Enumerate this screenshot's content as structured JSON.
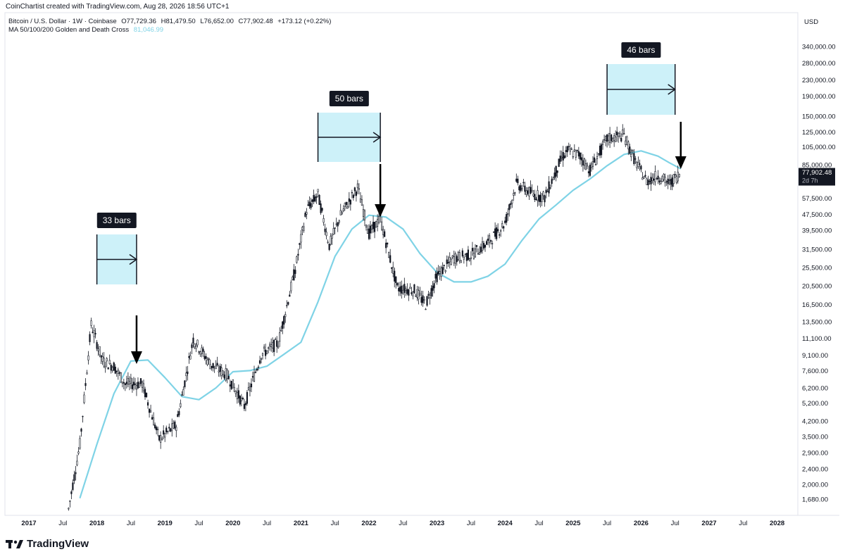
{
  "header": {
    "credit": "CoinChartist created with TradingView.com, Aug 28, 2026 18:56 UTC+1",
    "symbol": "Bitcoin / U.S. Dollar · 1W · Coinbase",
    "open": "O77,729.36",
    "high": "H81,479.50",
    "low": "L76,652.00",
    "close": "C77,902.48",
    "change": "+173.12 (+0.22%)",
    "indicator_name": "MA 50/100/200 Golden and Death Cross",
    "indicator_value": "81,046.99"
  },
  "footer": {
    "brand": "TradingView"
  },
  "colors": {
    "ma_line": "#7fd3e6",
    "box_fill": "#cdf1f9",
    "candles": "#131722",
    "label_bg": "#131722"
  },
  "chart_data": {
    "type": "line",
    "scale": "log",
    "currency": "USD",
    "price_scale_ticks": [
      "340,000.00",
      "280,000.00",
      "230,000.00",
      "190,000.00",
      "150,000.00",
      "125,000.00",
      "105,000.00",
      "85,000.00",
      "57,500.00",
      "47,500.00",
      "39,500.00",
      "31,500.00",
      "25,500.00",
      "20,500.00",
      "16,500.00",
      "13,500.00",
      "11,100.00",
      "9,100.00",
      "7,600.00",
      "6,200.00",
      "5,200.00",
      "4,200.00",
      "3,500.00",
      "2,900.00",
      "2,400.00",
      "2,000.00",
      "1,680.00"
    ],
    "time_axis_labels": [
      "2017",
      "Jul",
      "2018",
      "Jul",
      "2019",
      "Jul",
      "2020",
      "Jul",
      "2021",
      "Jul",
      "2022",
      "Jul",
      "2023",
      "Jul",
      "2024",
      "Jul",
      "2025",
      "Jul",
      "2026",
      "Jul",
      "2027",
      "Jul",
      "2028"
    ],
    "last_price_label": "77,902.48",
    "last_price_countdown": "2d 7h",
    "series": [
      {
        "name": "BTC/USD",
        "style": "candles",
        "x": [
          "2017-08",
          "2017-10",
          "2017-12",
          "2018-02",
          "2018-04",
          "2018-06",
          "2018-09",
          "2018-12",
          "2019-03",
          "2019-06",
          "2019-09",
          "2019-12",
          "2020-03",
          "2020-06",
          "2020-09",
          "2020-12",
          "2021-02",
          "2021-04",
          "2021-06",
          "2021-08",
          "2021-11",
          "2022-01",
          "2022-03",
          "2022-06",
          "2022-09",
          "2022-11",
          "2023-01",
          "2023-04",
          "2023-07",
          "2023-10",
          "2024-01",
          "2024-03",
          "2024-06",
          "2024-08",
          "2024-11",
          "2024-12",
          "2025-02",
          "2025-04",
          "2025-07",
          "2025-10",
          "2025-12",
          "2026-02",
          "2026-04",
          "2026-06",
          "2026-08"
        ],
        "y": [
          1500,
          3200,
          13000,
          8500,
          8000,
          6500,
          6500,
          3400,
          4000,
          11000,
          8200,
          7200,
          5000,
          9200,
          10500,
          25000,
          50000,
          60000,
          33000,
          47000,
          65000,
          38000,
          45000,
          20000,
          19500,
          16500,
          23000,
          28500,
          29500,
          34000,
          43000,
          68000,
          60000,
          58000,
          92000,
          100000,
          96000,
          80000,
          115000,
          120000,
          88000,
          70000,
          75000,
          68000,
          77902
        ]
      },
      {
        "name": "MA",
        "style": "line",
        "x": [
          "2017-10",
          "2018-01",
          "2018-04",
          "2018-07",
          "2018-10",
          "2019-01",
          "2019-04",
          "2019-07",
          "2019-10",
          "2020-01",
          "2020-04",
          "2020-07",
          "2020-10",
          "2021-01",
          "2021-04",
          "2021-07",
          "2021-10",
          "2022-01",
          "2022-04",
          "2022-07",
          "2022-10",
          "2023-01",
          "2023-04",
          "2023-07",
          "2023-10",
          "2024-01",
          "2024-04",
          "2024-07",
          "2024-10",
          "2025-01",
          "2025-04",
          "2025-07",
          "2025-10",
          "2026-01",
          "2026-04",
          "2026-06",
          "2026-08"
        ],
        "y": [
          1700,
          3200,
          5800,
          8500,
          8600,
          7000,
          5600,
          5400,
          6200,
          7500,
          7600,
          8000,
          9200,
          10600,
          17000,
          29000,
          40000,
          47000,
          46000,
          40000,
          30000,
          24000,
          21500,
          21500,
          23000,
          26500,
          35000,
          45000,
          53000,
          63000,
          72000,
          84000,
          96000,
          100000,
          94000,
          87000,
          81047
        ]
      }
    ],
    "annotations": [
      {
        "label": "33 bars",
        "from": "2018-01",
        "to": "2018-08"
      },
      {
        "label": "50 bars",
        "from": "2021-04",
        "to": "2022-03"
      },
      {
        "label": "46 bars",
        "from": "2025-07",
        "to": "2026-07"
      }
    ],
    "arrows": [
      {
        "x": "2018-08"
      },
      {
        "x": "2022-03"
      },
      {
        "x": "2026-08"
      }
    ],
    "grid": false
  }
}
